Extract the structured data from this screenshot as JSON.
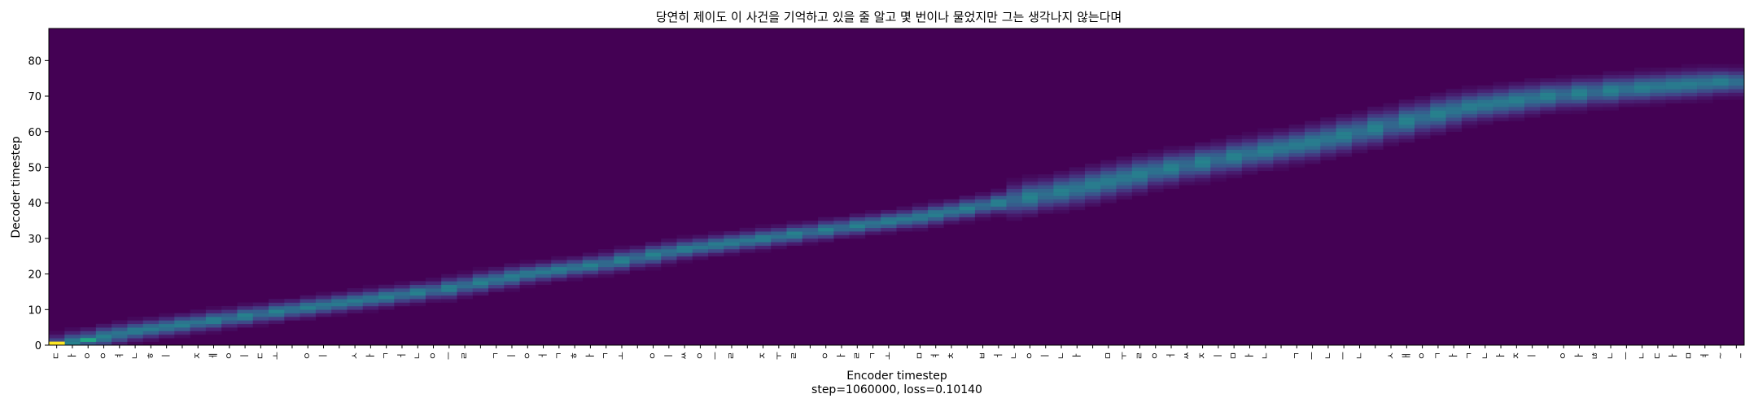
{
  "chart_data": {
    "type": "heatmap",
    "title": "당연히 제이도 이 사건을 기억하고 있을 줄 알고 몇 번이나 물었지만 그는 생각나지 않는다며",
    "xlabel": "Encoder timestep",
    "xlabel2": "step=1060000, loss=0.10140",
    "ylabel": "Decoder timestep",
    "ylim": [
      0,
      89
    ],
    "yticks": [
      0,
      10,
      20,
      30,
      40,
      50,
      60,
      70,
      80
    ],
    "xtick_labels": [
      "ㄷ",
      "ㅏ",
      "ㅇ",
      "ㅇ",
      "ㅕ",
      "ㄴ",
      "ㅎ",
      "ㅣ",
      " ",
      "ㅈ",
      "ㅔ",
      "ㅇ",
      "ㅣ",
      "ㄷ",
      "ㅗ",
      " ",
      "ㅇ",
      "ㅣ",
      " ",
      "ㅅ",
      "ㅏ",
      "ㄱ",
      "ㅓ",
      "ㄴ",
      "ㅇ",
      "ㅡ",
      "ㄹ",
      " ",
      "ㄱ",
      "ㅣ",
      "ㅇ",
      "ㅓ",
      "ㄱ",
      "ㅎ",
      "ㅏ",
      "ㄱ",
      "ㅗ",
      " ",
      "ㅇ",
      "ㅣ",
      "ㅆ",
      "ㅇ",
      "ㅡ",
      "ㄹ",
      " ",
      "ㅈ",
      "ㅜ",
      "ㄹ",
      " ",
      "ㅇ",
      "ㅏ",
      "ㄹ",
      "ㄱ",
      "ㅗ",
      " ",
      "ㅁ",
      "ㅕ",
      "ㅊ",
      " ",
      "ㅂ",
      "ㅓ",
      "ㄴ",
      "ㅇ",
      "ㅣ",
      "ㄴ",
      "ㅏ",
      " ",
      "ㅁ",
      "ㅜ",
      "ㄹ",
      "ㅇ",
      "ㅓ",
      "ㅆ",
      "ㅈ",
      "ㅣ",
      "ㅁ",
      "ㅏ",
      "ㄴ",
      " ",
      "ㄱ",
      "ㅡ",
      "ㄴ",
      "ㅡ",
      "ㄴ",
      " ",
      "ㅅ",
      "ㅐ",
      "ㅇ",
      "ㄱ",
      "ㅏ",
      "ㄱ",
      "ㄴ",
      "ㅏ",
      "ㅈ",
      "ㅣ",
      " ",
      "ㅇ",
      "ㅏ",
      "ㄶ",
      "ㄴ",
      "ㅡ",
      "ㄴ",
      "ㄷ",
      "ㅏ",
      "ㅁ",
      "ㅕ",
      "~",
      "_"
    ],
    "colormap": "viridis",
    "alignment_path": {
      "encoder_steps": [
        0,
        5,
        10,
        15,
        20,
        25,
        30,
        35,
        40,
        45,
        50,
        55,
        60,
        65,
        70,
        75,
        80,
        85,
        90,
        95,
        100,
        106
      ],
      "decoder_steps": [
        0,
        4,
        7,
        10,
        13,
        16,
        20,
        23,
        27,
        30,
        33,
        36,
        40,
        44,
        49,
        53,
        57,
        62,
        67,
        70,
        72,
        74
      ]
    },
    "highlights": [
      {
        "encoder_step": 0,
        "decoder_step": 0,
        "intensity": 1.0
      },
      {
        "encoder_step": 2,
        "decoder_step": 1,
        "intensity": 0.75
      }
    ],
    "grid": false,
    "legend": "none"
  }
}
